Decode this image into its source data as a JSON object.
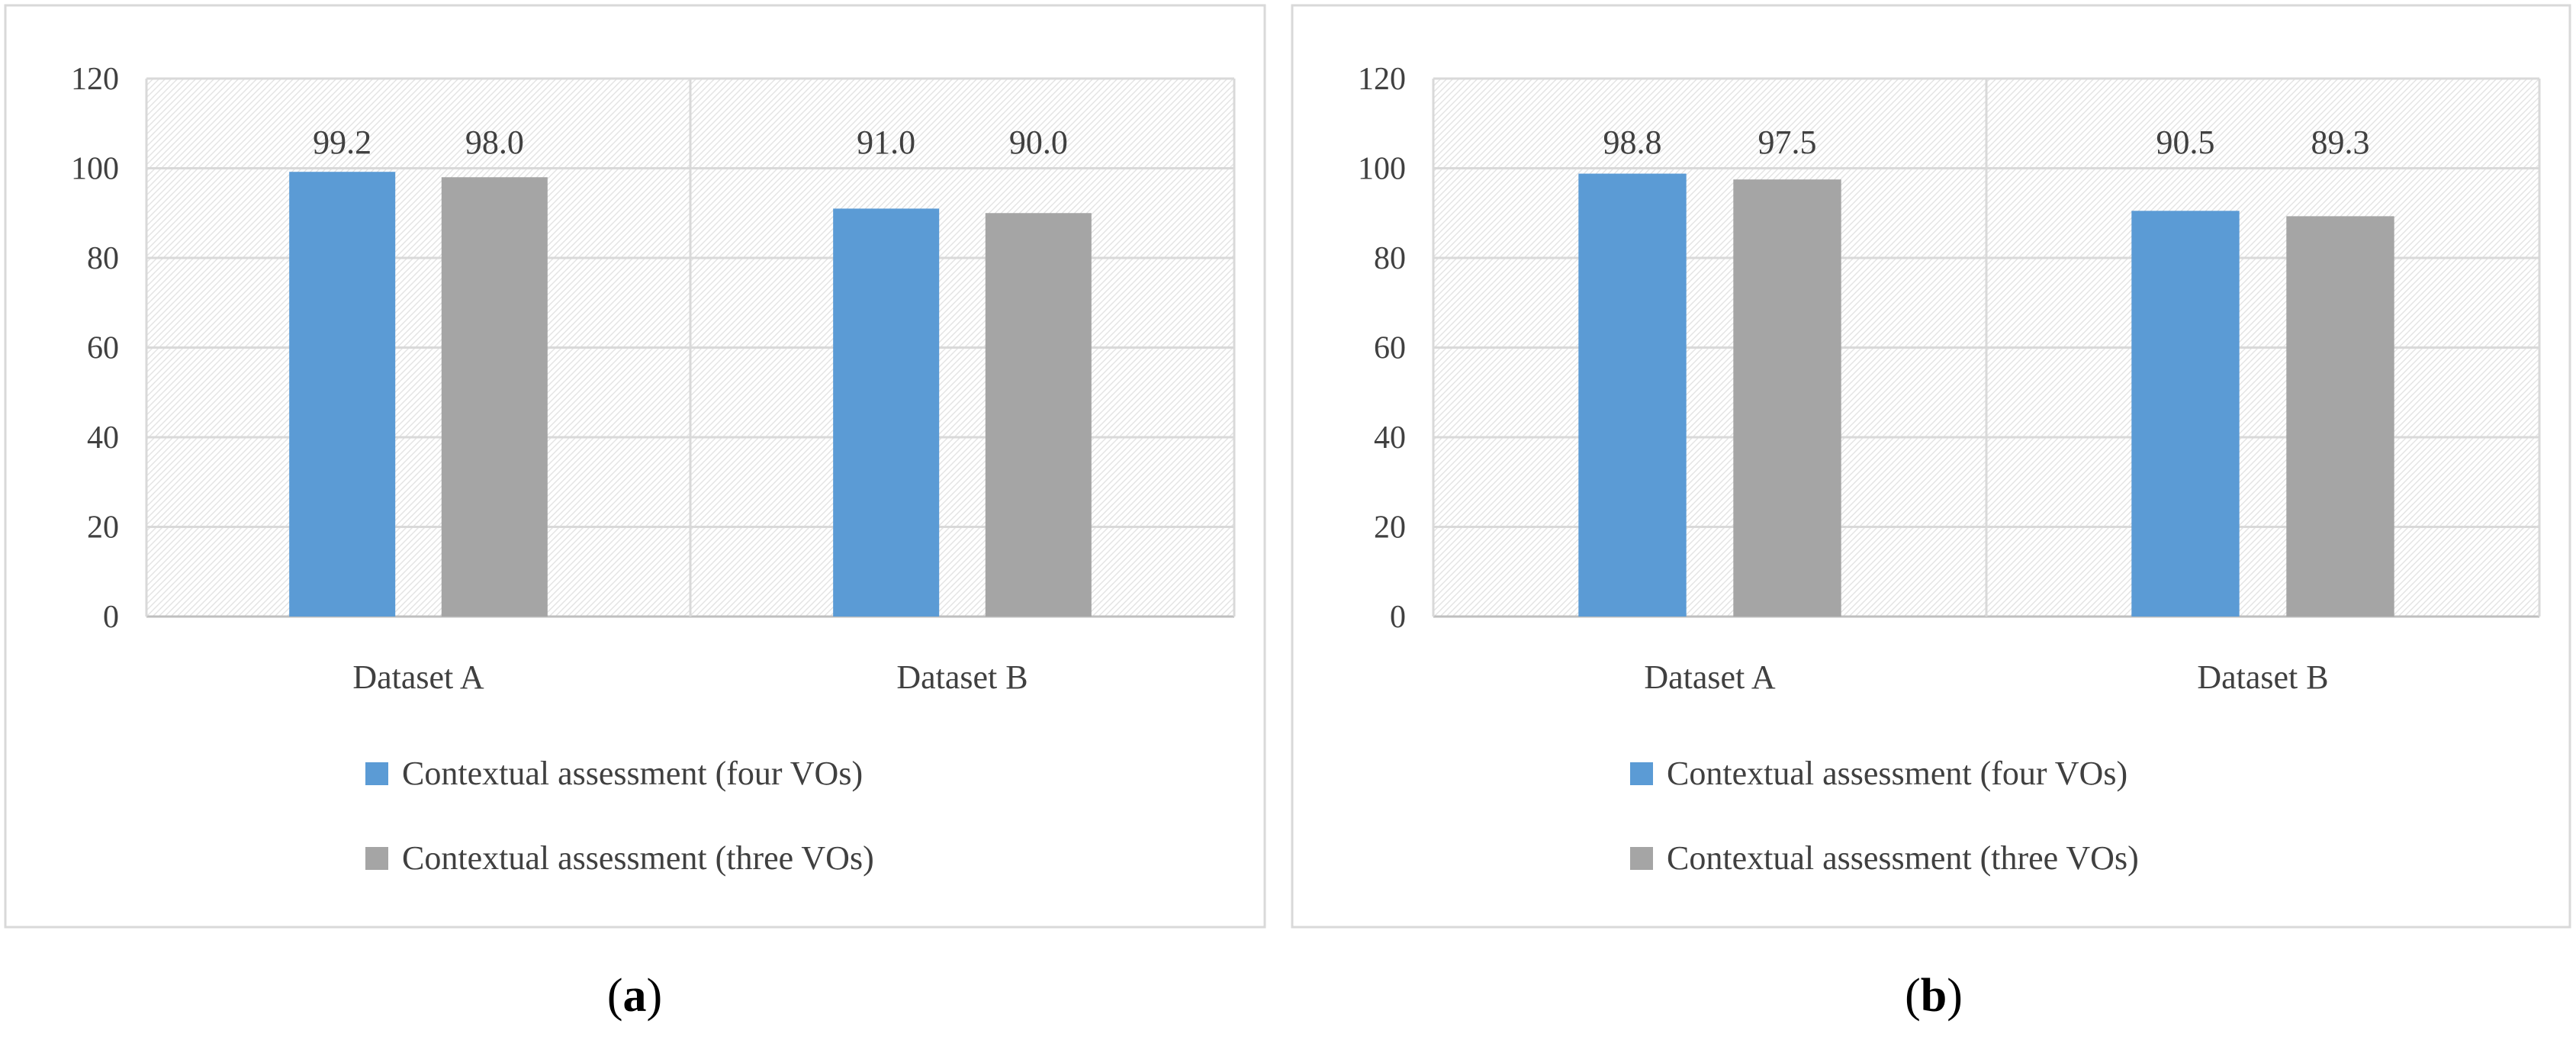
{
  "colors": {
    "series_four": "#5b9bd5",
    "series_three": "#a5a5a5",
    "text": "#404040",
    "grid": "#d9d9d9",
    "hatch": "#e6e6e6",
    "border": "#d9d9d9"
  },
  "chart_data": [
    {
      "type": "bar",
      "panel_label": "(a)",
      "categories": [
        "Dataset A",
        "Dataset B"
      ],
      "series": [
        {
          "name": "Contextual assessment (four VOs)",
          "values": [
            99.2,
            91.0
          ],
          "labels": [
            "99.2",
            "91.0"
          ]
        },
        {
          "name": "Contextual assessment (three VOs)",
          "values": [
            98.0,
            90.0
          ],
          "labels": [
            "98.0",
            "90.0"
          ]
        }
      ],
      "yticks": [
        "0",
        "20",
        "40",
        "60",
        "80",
        "100",
        "120"
      ],
      "ylim": [
        0,
        120
      ],
      "title": "",
      "xlabel": "",
      "ylabel": "",
      "legend_position": "bottom",
      "grid": true
    },
    {
      "type": "bar",
      "panel_label": "(b)",
      "categories": [
        "Dataset A",
        "Dataset B"
      ],
      "series": [
        {
          "name": "Contextual assessment (four VOs)",
          "values": [
            98.8,
            90.5
          ],
          "labels": [
            "98.8",
            "90.5"
          ]
        },
        {
          "name": "Contextual assessment (three VOs)",
          "values": [
            97.5,
            89.3
          ],
          "labels": [
            "97.5",
            "89.3"
          ]
        }
      ],
      "yticks": [
        "0",
        "20",
        "40",
        "60",
        "80",
        "100",
        "120"
      ],
      "ylim": [
        0,
        120
      ],
      "title": "",
      "xlabel": "",
      "ylabel": "",
      "legend_position": "bottom",
      "grid": true
    }
  ]
}
